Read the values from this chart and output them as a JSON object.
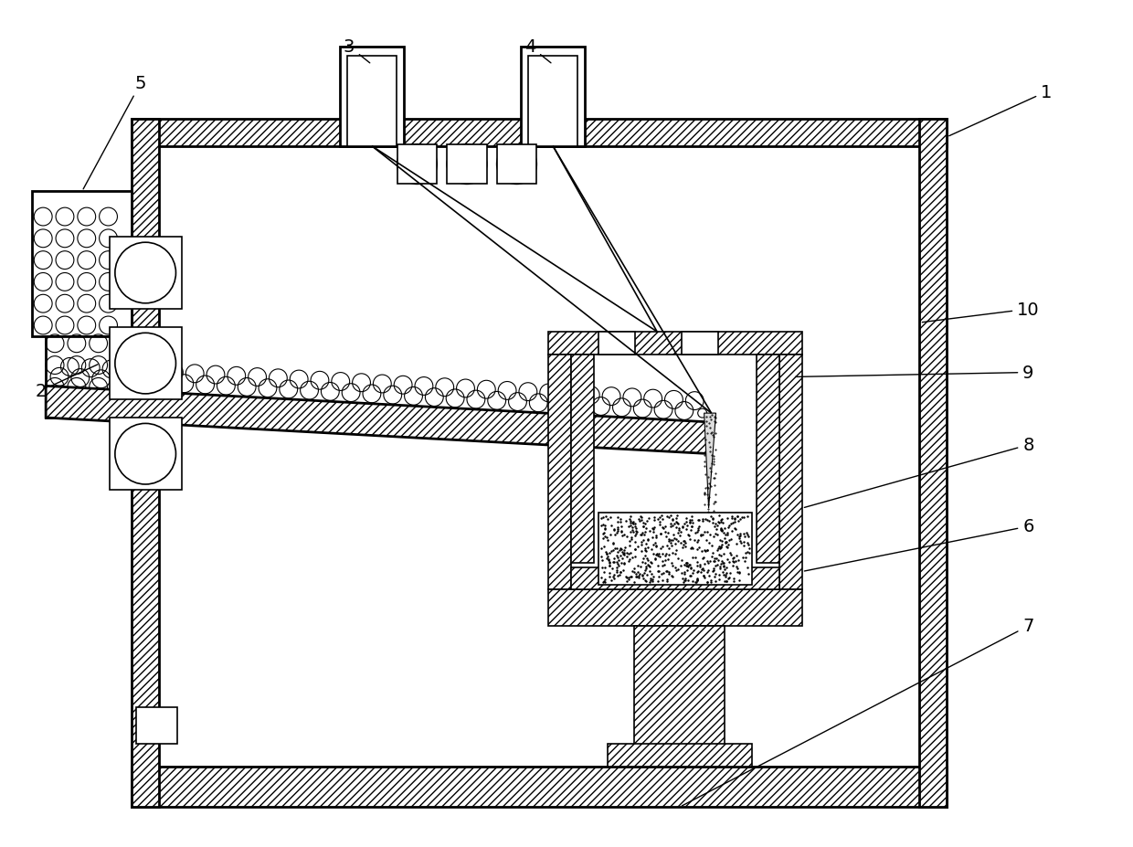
{
  "bg_color": "#ffffff",
  "line_color": "#000000",
  "fig_width": 12.4,
  "fig_height": 9.28,
  "lw_main": 2.0,
  "lw_thin": 1.2,
  "label_fs": 14
}
